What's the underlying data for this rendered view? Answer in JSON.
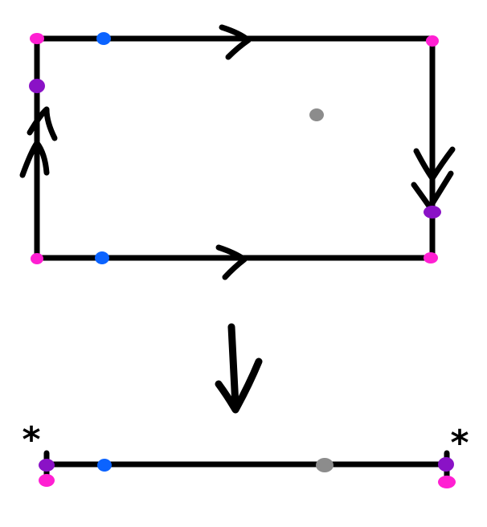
{
  "colors": {
    "background": "#ffffff",
    "ink": "#000000",
    "corner_dot": "#ff1fd2",
    "blue_dot": "#0b63ff",
    "purple_dot": "#8a12c6",
    "gray_dot": "#8c8c8c"
  },
  "labels": {
    "left_star": "*",
    "right_star": "*"
  },
  "annotations": [
    "single-arrow-on-top-and-bottom-edges",
    "double-arrow-on-left-and-right-edges",
    "down-arrow-between-rectangle-and-segment"
  ]
}
